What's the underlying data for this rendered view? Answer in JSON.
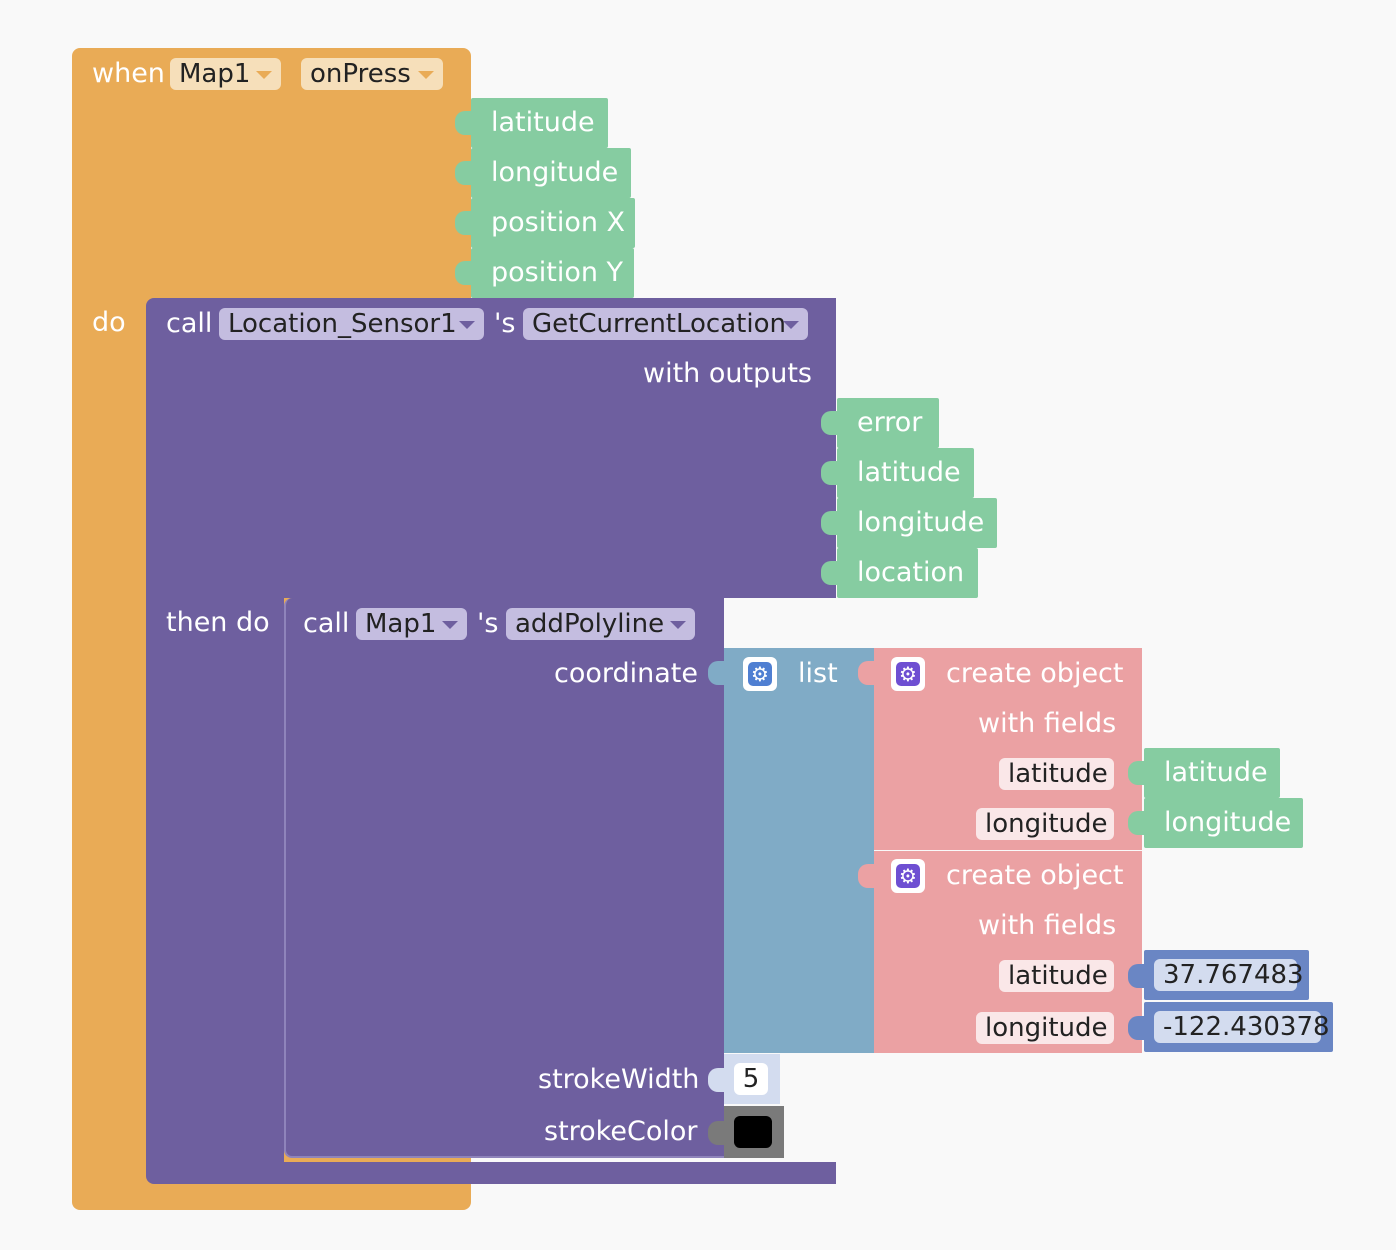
{
  "colors": {
    "event": "#e9ab56",
    "procedure": "#6e5f9f",
    "variable": "#86cca1",
    "list": "#80abc6",
    "dictionary": "#eba1a3",
    "math": "#6a86c4",
    "color_black": "#000000"
  },
  "event_block": {
    "when_label": "when",
    "component": "Map1",
    "event": "onPress",
    "params": [
      "latitude",
      "longitude",
      "position X",
      "position Y"
    ],
    "do_label": "do"
  },
  "location_call": {
    "call_label": "call",
    "component": "Location_Sensor1",
    "possessive": "'s",
    "method": "GetCurrentLocation",
    "outputs_label": "with outputs",
    "outputs": [
      "error",
      "latitude",
      "longitude",
      "location"
    ],
    "then_label": "then do"
  },
  "polyline_call": {
    "call_label": "call",
    "component": "Map1",
    "possessive": "'s",
    "method": "addPolyline",
    "coordinate_label": "coordinate",
    "stroke_width_label": "strokeWidth",
    "stroke_width_value": "5",
    "stroke_color_label": "strokeColor"
  },
  "list_block": {
    "label": "list",
    "icon": "gear-icon"
  },
  "objects": [
    {
      "label": "create object",
      "with_fields": "with fields",
      "fields": [
        {
          "name": "latitude",
          "value": "latitude"
        },
        {
          "name": "longitude",
          "value": "longitude"
        }
      ]
    },
    {
      "label": "create object",
      "with_fields": "with fields",
      "fields": [
        {
          "name": "latitude",
          "value": "37.767483"
        },
        {
          "name": "longitude",
          "value": "-122.430378"
        }
      ]
    }
  ]
}
